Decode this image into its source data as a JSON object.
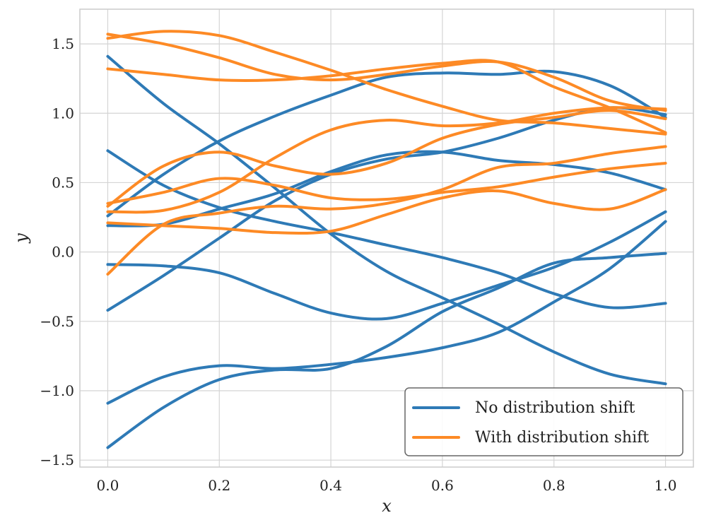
{
  "chart_data": {
    "type": "line",
    "title": "",
    "xlabel": "x",
    "ylabel": "y",
    "xlim": [
      -0.05,
      1.05
    ],
    "ylim": [
      -1.55,
      1.75
    ],
    "grid": true,
    "legend_position": "bottom-right",
    "x_ticks": [
      0.0,
      0.2,
      0.4,
      0.6,
      0.8,
      1.0
    ],
    "x_tick_labels": [
      "0.0",
      "0.2",
      "0.4",
      "0.6",
      "0.8",
      "1.0"
    ],
    "y_ticks": [
      -1.5,
      -1.0,
      -0.5,
      0.0,
      0.5,
      1.0,
      1.5
    ],
    "y_tick_labels": [
      "−1.5",
      "−1.0",
      "−0.5",
      "0.0",
      "0.5",
      "1.0",
      "1.5"
    ],
    "x": [
      0.0,
      0.1,
      0.2,
      0.3,
      0.4,
      0.5,
      0.6,
      0.7,
      0.8,
      0.9,
      1.0
    ],
    "groups": [
      {
        "name": "No distribution shift",
        "color": "#2e7ab6",
        "series": [
          {
            "values": [
              1.41,
              1.07,
              0.78,
              0.46,
              0.13,
              -0.14,
              -0.33,
              -0.52,
              -0.72,
              -0.88,
              -0.95
            ]
          },
          {
            "values": [
              0.73,
              0.48,
              0.32,
              0.22,
              0.14,
              0.05,
              -0.04,
              -0.15,
              -0.3,
              -0.4,
              -0.37
            ]
          },
          {
            "values": [
              0.26,
              0.56,
              0.8,
              0.98,
              1.13,
              1.26,
              1.29,
              1.28,
              1.3,
              1.2,
              0.97
            ]
          },
          {
            "values": [
              0.19,
              0.2,
              0.31,
              0.42,
              0.58,
              0.7,
              0.72,
              0.66,
              0.63,
              0.57,
              0.45
            ]
          },
          {
            "values": [
              -0.42,
              -0.17,
              0.1,
              0.37,
              0.56,
              0.67,
              0.72,
              0.82,
              0.95,
              1.04,
              0.99
            ]
          },
          {
            "values": [
              -0.09,
              -0.1,
              -0.15,
              -0.3,
              -0.44,
              -0.48,
              -0.37,
              -0.24,
              -0.11,
              0.07,
              0.29
            ]
          },
          {
            "values": [
              -1.09,
              -0.9,
              -0.82,
              -0.84,
              -0.81,
              -0.76,
              -0.69,
              -0.58,
              -0.36,
              -0.12,
              0.22
            ]
          },
          {
            "values": [
              -1.41,
              -1.12,
              -0.92,
              -0.85,
              -0.84,
              -0.68,
              -0.43,
              -0.26,
              -0.08,
              -0.04,
              -0.01
            ]
          }
        ]
      },
      {
        "name": "With distribution shift",
        "color": "#fd8a25",
        "series": [
          {
            "values": [
              1.57,
              1.5,
              1.4,
              1.28,
              1.24,
              1.28,
              1.34,
              1.37,
              1.26,
              1.09,
              1.02
            ]
          },
          {
            "values": [
              1.54,
              1.59,
              1.56,
              1.44,
              1.31,
              1.17,
              1.05,
              0.95,
              0.93,
              0.89,
              0.85
            ]
          },
          {
            "values": [
              1.32,
              1.28,
              1.24,
              1.24,
              1.27,
              1.32,
              1.36,
              1.37,
              1.19,
              1.04,
              0.86
            ]
          },
          {
            "values": [
              0.35,
              0.43,
              0.53,
              0.48,
              0.39,
              0.38,
              0.43,
              0.47,
              0.54,
              0.6,
              0.64
            ]
          },
          {
            "values": [
              0.33,
              0.62,
              0.72,
              0.62,
              0.56,
              0.64,
              0.82,
              0.92,
              0.97,
              1.02,
              0.96
            ]
          },
          {
            "values": [
              0.29,
              0.3,
              0.43,
              0.68,
              0.88,
              0.95,
              0.91,
              0.93,
              1.0,
              1.04,
              1.03
            ]
          },
          {
            "values": [
              0.21,
              0.19,
              0.17,
              0.14,
              0.15,
              0.27,
              0.39,
              0.44,
              0.35,
              0.31,
              0.45
            ]
          },
          {
            "values": [
              -0.16,
              0.2,
              0.28,
              0.33,
              0.31,
              0.35,
              0.45,
              0.61,
              0.64,
              0.71,
              0.76
            ]
          }
        ]
      }
    ]
  }
}
